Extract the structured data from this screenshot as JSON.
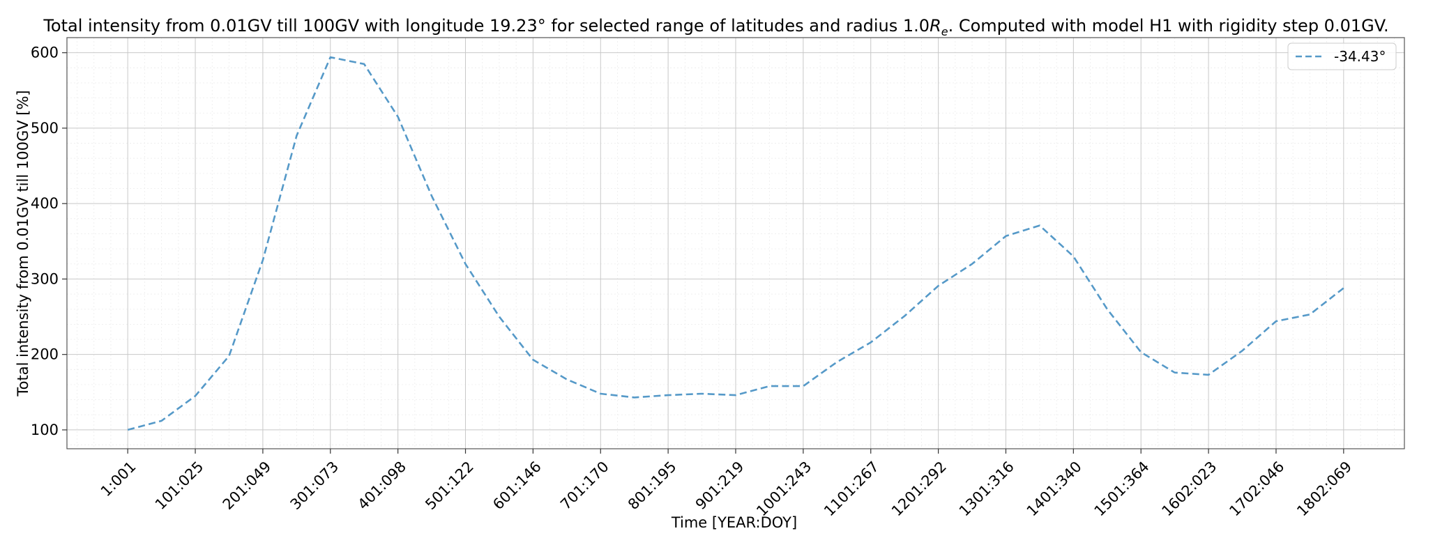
{
  "chart_data": {
    "type": "line",
    "title_parts": [
      "Total intensity from 0.01GV till 100GV with longitude 19.23° for selected range of latitudes and radius 1.0",
      "R",
      "e",
      ". Computed with model H1 with rigidity step 0.01GV."
    ],
    "xlabel": "Time [YEAR:DOY]",
    "ylabel": "Total intensity from 0.01GV till 100GV [%]",
    "ylim": [
      75,
      620
    ],
    "yticks": [
      100,
      200,
      300,
      400,
      500,
      600
    ],
    "xlim": [
      -1.8,
      37.8
    ],
    "xticks": [
      0,
      2,
      4,
      6,
      8,
      10,
      12,
      14,
      16,
      18,
      20,
      22,
      24,
      26,
      28,
      30,
      32,
      34,
      36
    ],
    "xtick_labels": [
      "1:001",
      "101:025",
      "201:049",
      "301:073",
      "401:098",
      "501:122",
      "601:146",
      "701:170",
      "801:195",
      "901:219",
      "1001:243",
      "1101:267",
      "1201:292",
      "1301:316",
      "1401:340",
      "1501:364",
      "1602:023",
      "1702:046",
      "1802:069"
    ],
    "grid": true,
    "legend_position": "top-right",
    "series": [
      {
        "name": "-34.43°",
        "color": "#5599c8",
        "style": "dashed",
        "values": [
          100,
          112,
          145,
          198,
          325,
          490,
          594,
          585,
          515,
          410,
          320,
          250,
          193,
          167,
          148,
          143,
          146,
          148,
          146,
          158,
          158,
          190,
          216,
          251,
          291,
          320,
          357,
          371,
          330,
          260,
          203,
          176,
          173,
          205,
          244,
          253,
          288
        ]
      }
    ]
  }
}
